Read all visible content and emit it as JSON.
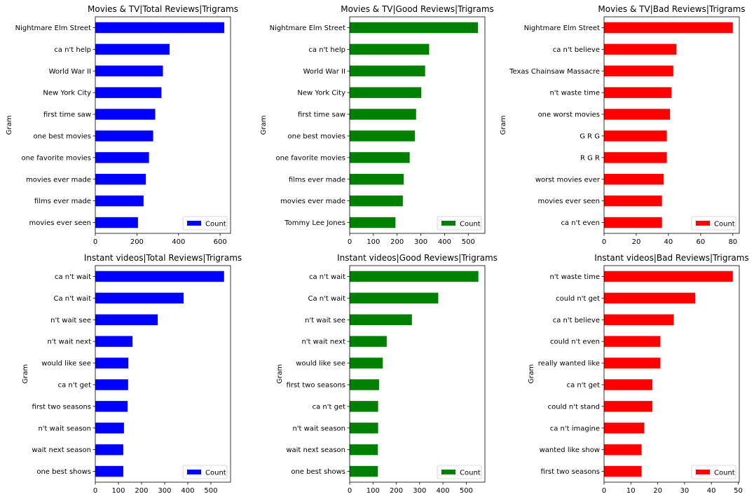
{
  "chart_data": [
    {
      "type": "bar",
      "orientation": "horizontal",
      "title": "Movies & TV|Total Reviews|Trigrams",
      "ylabel": "Gram",
      "color": "#0000ff",
      "legend": {
        "label": "Count",
        "position": "lower-right"
      },
      "xlim": [
        0,
        650
      ],
      "xticks": [
        0,
        200,
        400,
        600
      ],
      "categories": [
        "Nightmare Elm Street",
        "ca n't help",
        "World War II",
        "New York City",
        "first time saw",
        "one best movies",
        "one favorite movies",
        "movies ever made",
        "films ever made",
        "movies ever seen"
      ],
      "values": [
        620,
        357,
        325,
        318,
        288,
        278,
        258,
        243,
        232,
        205
      ]
    },
    {
      "type": "bar",
      "orientation": "horizontal",
      "title": "Movies & TV|Good Reviews|Trigrams",
      "ylabel": "Gram",
      "color": "#008000",
      "legend": {
        "label": "Count",
        "position": "lower-right"
      },
      "xlim": [
        0,
        570
      ],
      "xticks": [
        0,
        100,
        200,
        300,
        400,
        500
      ],
      "categories": [
        "Nightmare Elm Street",
        "ca n't help",
        "World War II",
        "New York City",
        "first time saw",
        "one best movies",
        "one favorite movies",
        "films ever made",
        "movies ever made",
        "Tommy Lee Jones"
      ],
      "values": [
        541,
        335,
        318,
        302,
        280,
        275,
        253,
        228,
        224,
        193
      ]
    },
    {
      "type": "bar",
      "orientation": "horizontal",
      "title": "Movies & TV|Bad Reviews|Trigrams",
      "ylabel": "Gram",
      "color": "#ff0000",
      "legend": {
        "label": "Count",
        "position": "lower-right"
      },
      "xlim": [
        0,
        84
      ],
      "xticks": [
        0,
        20,
        40,
        60,
        80
      ],
      "categories": [
        "Nightmare Elm Street",
        "ca n't believe",
        "Texas Chainsaw Massacre",
        "n't waste time",
        "one worst movies",
        "G R G",
        "R G R",
        "worst movies ever",
        "movies ever seen",
        "ca n't even"
      ],
      "values": [
        80,
        45,
        43,
        42,
        41,
        39,
        39,
        37,
        36,
        36
      ]
    },
    {
      "type": "bar",
      "orientation": "horizontal",
      "title": "Instant videos|Total Reviews|Trigrams",
      "ylabel": "Gram",
      "color": "#0000ff",
      "legend": {
        "label": "Count",
        "position": "lower-right"
      },
      "xlim": [
        0,
        585
      ],
      "xticks": [
        0,
        100,
        200,
        300,
        400,
        500
      ],
      "categories": [
        "ca n't wait",
        "Ca n't wait",
        "n't wait see",
        "n't wait next",
        "would like see",
        "ca n't get",
        "first two seasons",
        "n't wait season",
        "wait next season",
        "one best shows"
      ],
      "values": [
        557,
        382,
        270,
        161,
        143,
        142,
        140,
        124,
        121,
        121
      ]
    },
    {
      "type": "bar",
      "orientation": "horizontal",
      "title": "Instant videos|Good Reviews|Trigrams",
      "ylabel": "Gram",
      "color": "#008000",
      "legend": {
        "label": "Count",
        "position": "lower-right"
      },
      "xlim": [
        0,
        580
      ],
      "xticks": [
        0,
        100,
        200,
        300,
        400,
        500
      ],
      "categories": [
        "ca n't wait",
        "Ca n't wait",
        "n't wait see",
        "n't wait next",
        "would like see",
        "first two seasons",
        "ca n't get",
        "n't wait season",
        "wait next season",
        "one best shows"
      ],
      "values": [
        552,
        380,
        267,
        159,
        142,
        126,
        122,
        122,
        121,
        121
      ]
    },
    {
      "type": "bar",
      "orientation": "horizontal",
      "title": "Instant videos|Bad Reviews|Trigrams",
      "ylabel": "Gram",
      "color": "#ff0000",
      "legend": {
        "label": "Count",
        "position": "lower-right"
      },
      "xlim": [
        0,
        50.4
      ],
      "xticks": [
        0,
        10,
        20,
        30,
        40,
        50
      ],
      "categories": [
        "n't waste time",
        "could n't get",
        "ca n't believe",
        "could n't even",
        "really wanted like",
        "ca n't get",
        "could n't stand",
        "ca n't imagine",
        "wanted like show",
        "first two seasons"
      ],
      "values": [
        48,
        34,
        26,
        21,
        21,
        18,
        18,
        15,
        14,
        14
      ]
    }
  ]
}
